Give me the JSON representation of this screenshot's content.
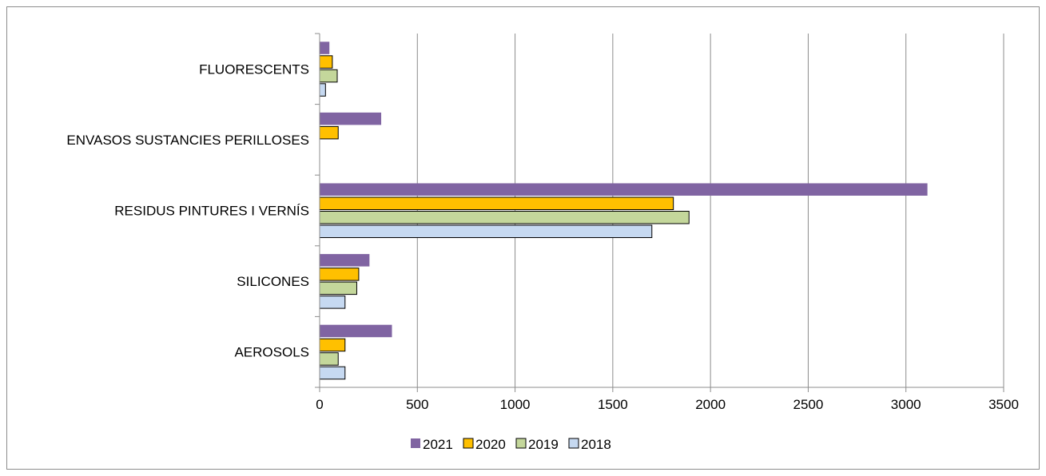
{
  "chart_data": {
    "type": "bar",
    "orientation": "horizontal",
    "categories": [
      "AEROSOLS",
      "SILICONES",
      "RESIDUS PINTURES I VERNÍS",
      "ENVASOS SUSTANCIES PERILLOSES",
      "FLUORESCENTS"
    ],
    "series": [
      {
        "name": "2018",
        "color": "#c6d9f1",
        "values": [
          130,
          130,
          1700,
          0,
          30
        ]
      },
      {
        "name": "2019",
        "color": "#c4d79b",
        "values": [
          95,
          190,
          1890,
          0,
          90
        ]
      },
      {
        "name": "2020",
        "color": "#ffc000",
        "values": [
          130,
          200,
          1810,
          95,
          65
        ]
      },
      {
        "name": "2021",
        "color": "#8064a2",
        "values": [
          370,
          255,
          3110,
          315,
          50
        ]
      }
    ],
    "xticks": [
      "0",
      "500",
      "1000",
      "1500",
      "2000",
      "2500",
      "3000",
      "3500"
    ],
    "xlim": [
      0,
      3500
    ],
    "grid": "vertical",
    "legend_position": "bottom",
    "legend_order": [
      "2021",
      "2020",
      "2019",
      "2018"
    ],
    "title": "",
    "xlabel": "",
    "ylabel": ""
  }
}
